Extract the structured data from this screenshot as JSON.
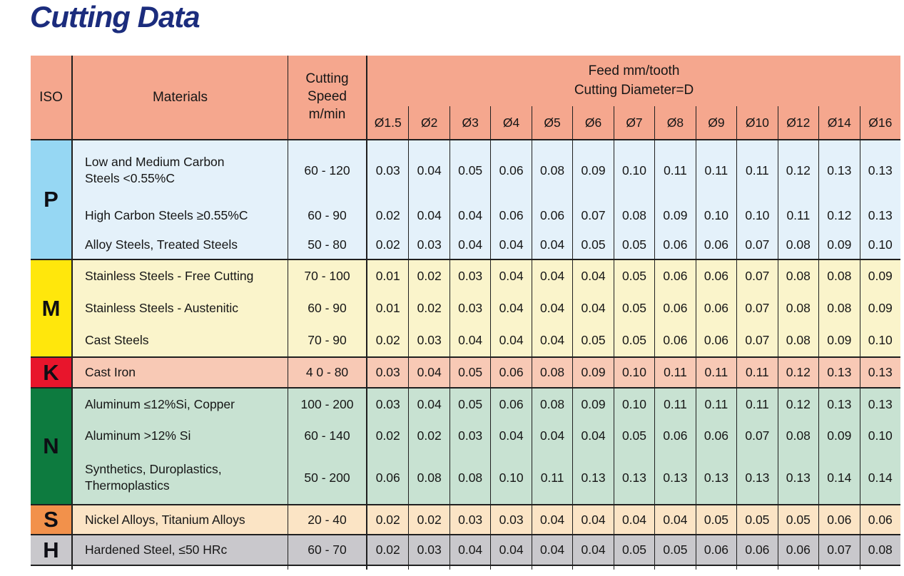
{
  "title": "Cutting Data",
  "colors": {
    "title-navy": "#1B2C7D",
    "header-bg": "#F5A78E",
    "line": "#1F1F1F",
    "text": "#161616",
    "iso-p-bg": "#96D7F3",
    "p-row-bg": "#E4F1FA",
    "iso-m-bg": "#FFE70C",
    "m-row-bg": "#FAF4CB",
    "iso-k-bg": "#E8152C",
    "k-row-bg": "#F8C9B5",
    "iso-n-bg": "#0D7B3F",
    "n-row-bg": "#C8E2D2",
    "iso-s-bg": "#F2914B",
    "s-row-bg": "#FBE4C5",
    "iso-h-bg": "#C9C8CC",
    "h-row-bg": "#C9C8CC"
  },
  "table": {
    "header": {
      "iso": "ISO",
      "materials": "Materials",
      "speed": "Cutting\nSpeed\nm/min",
      "feed_title": "Feed mm/tooth\nCutting Diameter=D",
      "diameters": [
        "Ø1.5",
        "Ø2",
        "Ø3",
        "Ø4",
        "Ø5",
        "Ø6",
        "Ø7",
        "Ø8",
        "Ø9",
        "Ø10",
        "Ø12",
        "Ø14",
        "Ø16"
      ]
    },
    "sections": [
      {
        "iso": "P",
        "rows": [
          {
            "material": "Low and Medium Carbon\nSteels <0.55%C",
            "speed": "60 - 120",
            "feeds": [
              "0.03",
              "0.04",
              "0.05",
              "0.06",
              "0.08",
              "0.09",
              "0.10",
              "0.11",
              "0.11",
              "0.11",
              "0.12",
              "0.13",
              "0.13"
            ]
          },
          {
            "material": "High Carbon Steels ≥0.55%C",
            "speed": "60 - 90",
            "feeds": [
              "0.02",
              "0.04",
              "0.04",
              "0.06",
              "0.06",
              "0.07",
              "0.08",
              "0.09",
              "0.10",
              "0.10",
              "0.11",
              "0.12",
              "0.13"
            ]
          },
          {
            "material": "Alloy Steels, Treated Steels",
            "speed": "50 - 80",
            "feeds": [
              "0.02",
              "0.03",
              "0.04",
              "0.04",
              "0.04",
              "0.05",
              "0.05",
              "0.06",
              "0.06",
              "0.07",
              "0.08",
              "0.09",
              "0.10"
            ]
          }
        ]
      },
      {
        "iso": "M",
        "rows": [
          {
            "material": "Stainless Steels - Free Cutting",
            "speed": "70 - 100",
            "feeds": [
              "0.01",
              "0.02",
              "0.03",
              "0.04",
              "0.04",
              "0.04",
              "0.05",
              "0.06",
              "0.06",
              "0.07",
              "0.08",
              "0.08",
              "0.09"
            ]
          },
          {
            "material": "Stainless Steels - Austenitic",
            "speed": "60 - 90",
            "feeds": [
              "0.01",
              "0.02",
              "0.03",
              "0.04",
              "0.04",
              "0.04",
              "0.05",
              "0.06",
              "0.06",
              "0.07",
              "0.08",
              "0.08",
              "0.09"
            ]
          },
          {
            "material": "Cast Steels",
            "speed": "70 - 90",
            "feeds": [
              "0.02",
              "0.03",
              "0.04",
              "0.04",
              "0.04",
              "0.05",
              "0.05",
              "0.06",
              "0.06",
              "0.07",
              "0.08",
              "0.09",
              "0.10"
            ]
          }
        ]
      },
      {
        "iso": "K",
        "rows": [
          {
            "material": "Cast Iron",
            "speed": "4 0 - 80",
            "feeds": [
              "0.03",
              "0.04",
              "0.05",
              "0.06",
              "0.08",
              "0.09",
              "0.10",
              "0.11",
              "0.11",
              "0.11",
              "0.12",
              "0.13",
              "0.13"
            ]
          }
        ]
      },
      {
        "iso": "N",
        "rows": [
          {
            "material": "Aluminum ≤12%Si, Copper",
            "speed": "100 - 200",
            "feeds": [
              "0.03",
              "0.04",
              "0.05",
              "0.06",
              "0.08",
              "0.09",
              "0.10",
              "0.11",
              "0.11",
              "0.11",
              "0.12",
              "0.13",
              "0.13"
            ]
          },
          {
            "material": "Aluminum >12% Si",
            "speed": "60 - 140",
            "feeds": [
              "0.02",
              "0.02",
              "0.03",
              "0.04",
              "0.04",
              "0.04",
              "0.05",
              "0.06",
              "0.06",
              "0.07",
              "0.08",
              "0.09",
              "0.10"
            ]
          },
          {
            "material": "Synthetics, Duroplastics,\nThermoplastics",
            "speed": "50 - 200",
            "feeds": [
              "0.06",
              "0.08",
              "0.08",
              "0.10",
              "0.11",
              "0.13",
              "0.13",
              "0.13",
              "0.13",
              "0.13",
              "0.13",
              "0.14",
              "0.14"
            ]
          }
        ]
      },
      {
        "iso": "S",
        "rows": [
          {
            "material": "Nickel Alloys, Titanium Alloys",
            "speed": "20 - 40",
            "feeds": [
              "0.02",
              "0.02",
              "0.03",
              "0.03",
              "0.04",
              "0.04",
              "0.04",
              "0.04",
              "0.05",
              "0.05",
              "0.05",
              "0.06",
              "0.06"
            ]
          }
        ]
      },
      {
        "iso": "H",
        "rows": [
          {
            "material": "Hardened Steel, ≤50 HRc",
            "speed": "60 - 70",
            "feeds": [
              "0.02",
              "0.03",
              "0.04",
              "0.04",
              "0.04",
              "0.04",
              "0.05",
              "0.05",
              "0.06",
              "0.06",
              "0.06",
              "0.07",
              "0.08"
            ]
          }
        ]
      }
    ]
  }
}
